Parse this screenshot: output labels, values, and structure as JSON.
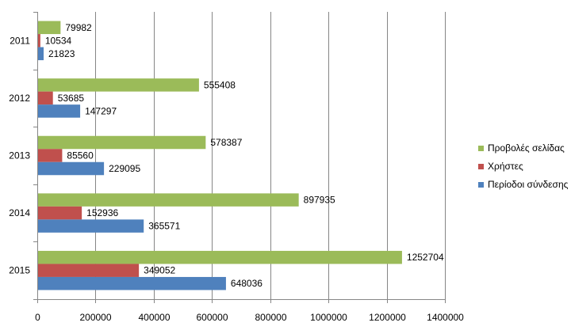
{
  "chart_data": {
    "type": "bar",
    "orientation": "horizontal",
    "categories": [
      "2011",
      "2012",
      "2013",
      "2014",
      "2015"
    ],
    "series": [
      {
        "name": "Περίοδοι σύνδεσης",
        "color": "#4f81bd",
        "values": [
          21823,
          147297,
          229095,
          365571,
          648036
        ]
      },
      {
        "name": "Χρήστες",
        "color": "#c0504d",
        "values": [
          10534,
          53685,
          85560,
          152936,
          349052
        ]
      },
      {
        "name": "Προβολές σελίδας",
        "color": "#9bbb59",
        "values": [
          79982,
          555408,
          578387,
          897935,
          1252704
        ]
      }
    ],
    "legend_order": [
      2,
      1,
      0
    ],
    "xlim": [
      0,
      1400000
    ],
    "xticks": [
      0,
      200000,
      400000,
      600000,
      800000,
      1000000,
      1200000,
      1400000
    ],
    "title": "",
    "xlabel": "",
    "ylabel": "",
    "grid": true,
    "legend_position": "right"
  }
}
